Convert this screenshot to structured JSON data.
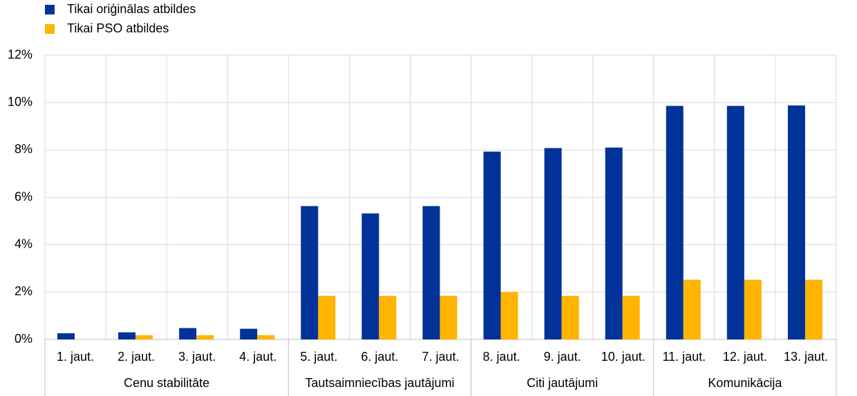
{
  "chart_data": {
    "type": "bar",
    "categories": [
      "1. jaut.",
      "2. jaut.",
      "3. jaut.",
      "4. jaut.",
      "5. jaut.",
      "6. jaut.",
      "7. jaut.",
      "8. jaut.",
      "9. jaut.",
      "10. jaut.",
      "11. jaut.",
      "12. jaut.",
      "13. jaut."
    ],
    "groups": [
      {
        "name": "Cenu stabilitāte",
        "size": 4
      },
      {
        "name": "Tautsaimniecības jautājumi",
        "size": 3
      },
      {
        "name": "Citi jautājumi",
        "size": 3
      },
      {
        "name": "Komunikācija",
        "size": 3
      }
    ],
    "series": [
      {
        "name": "Tikai oriģinālas atbildes",
        "color": "#003299",
        "values": [
          0.26,
          0.3,
          0.48,
          0.45,
          5.63,
          5.32,
          5.63,
          7.93,
          8.08,
          8.1,
          9.86,
          9.86,
          9.88
        ]
      },
      {
        "name": "Tikai PSO atbildes",
        "color": "#ffb400",
        "values": [
          0,
          0.18,
          0.18,
          0.18,
          1.84,
          1.84,
          1.84,
          2.0,
          1.84,
          1.84,
          2.52,
          2.52,
          2.52
        ]
      }
    ],
    "ylim": [
      0,
      12
    ],
    "yticks": [
      {
        "value": 0,
        "label": "0%"
      },
      {
        "value": 2,
        "label": "2%"
      },
      {
        "value": 4,
        "label": "4%"
      },
      {
        "value": 6,
        "label": "6%"
      },
      {
        "value": 8,
        "label": "8%"
      },
      {
        "value": 10,
        "label": "10%"
      },
      {
        "value": 12,
        "label": "12%"
      }
    ],
    "grid": true,
    "legend": "top-left"
  }
}
